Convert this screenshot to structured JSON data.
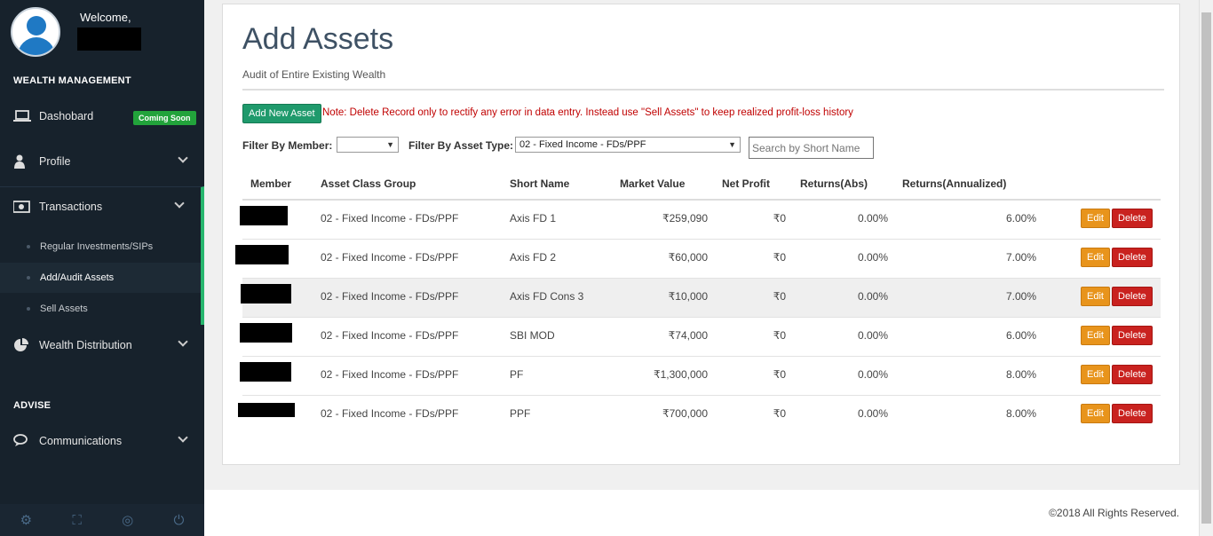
{
  "user": {
    "welcome": "Welcome,"
  },
  "sidebar": {
    "section_wealth": "WEALTH MANAGEMENT",
    "section_advise": "ADVISE",
    "dashboard": "Dashobard",
    "coming_soon": "Coming Soon",
    "profile": "Profile",
    "transactions": "Transactions",
    "sub": [
      "Regular Investments/SIPs",
      "Add/Audit Assets",
      "Sell Assets"
    ],
    "wealth_distribution": "Wealth Distribution",
    "communications": "Communications"
  },
  "page": {
    "title": "Add Assets",
    "subtitle": "Audit of Entire Existing Wealth",
    "add_button": "Add New Asset",
    "note": "Note: Delete Record only to rectify any error in data entry. Instead use \"Sell Assets\" to keep realized profit-loss history",
    "filter_member_label": "Filter By Member:",
    "filter_member_value": "",
    "filter_type_label": "Filter By Asset Type:",
    "filter_type_value": "02 - Fixed Income - FDs/PPF",
    "search_placeholder": "Search by Short Name"
  },
  "table": {
    "headers": [
      "Member",
      "Asset Class Group",
      "Short Name",
      "Market Value",
      "Net Profit",
      "Returns(Abs)",
      "Returns(Annualized)"
    ],
    "edit_label": "Edit",
    "delete_label": "Delete",
    "rows": [
      {
        "group": "02 - Fixed Income - FDs/PPF",
        "name": "Axis FD 1",
        "value": "₹259,090",
        "profit": "₹0",
        "abs": "0.00%",
        "ann": "6.00%"
      },
      {
        "group": "02 - Fixed Income - FDs/PPF",
        "name": "Axis FD 2",
        "value": "₹60,000",
        "profit": "₹0",
        "abs": "0.00%",
        "ann": "7.00%"
      },
      {
        "group": "02 - Fixed Income - FDs/PPF",
        "name": "Axis FD Cons 3",
        "value": "₹10,000",
        "profit": "₹0",
        "abs": "0.00%",
        "ann": "7.00%"
      },
      {
        "group": "02 - Fixed Income - FDs/PPF",
        "name": "SBI MOD",
        "value": "₹74,000",
        "profit": "₹0",
        "abs": "0.00%",
        "ann": "6.00%"
      },
      {
        "group": "02 - Fixed Income - FDs/PPF",
        "name": "PF",
        "value": "₹1,300,000",
        "profit": "₹0",
        "abs": "0.00%",
        "ann": "8.00%"
      },
      {
        "group": "02 - Fixed Income - FDs/PPF",
        "name": "PPF",
        "value": "₹700,000",
        "profit": "₹0",
        "abs": "0.00%",
        "ann": "8.00%"
      }
    ]
  },
  "footer": {
    "copyright": "©2018 All Rights Reserved."
  },
  "icons": {
    "settings": "gear-icon",
    "fullscreen": "expand-icon",
    "lock": "eye-slash-icon",
    "logout": "power-icon"
  }
}
